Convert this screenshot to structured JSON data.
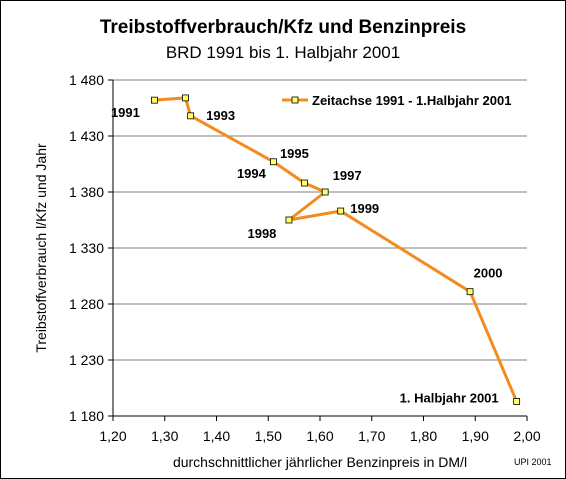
{
  "chart_data": {
    "type": "line",
    "title": "Treibstoffverbrauch/Kfz und Benzinpreis",
    "subtitle": "BRD 1991 bis 1. Halbjahr 2001",
    "xlabel": "durchschnittlicher jährlicher Benzinpreis in DM/l",
    "ylabel": "Treibstoffverbrauch  l/Kfz und Jahr",
    "xlim": [
      1.2,
      2.0
    ],
    "ylim": [
      1180,
      1480
    ],
    "x_ticks": [
      1.2,
      1.3,
      1.4,
      1.5,
      1.6,
      1.7,
      1.8,
      1.9,
      2.0
    ],
    "x_tick_labels": [
      "1,20",
      "1,30",
      "1,40",
      "1,50",
      "1,60",
      "1,70",
      "1,80",
      "1,90",
      "2,00"
    ],
    "y_ticks": [
      1180,
      1230,
      1280,
      1330,
      1380,
      1430,
      1480
    ],
    "y_tick_labels": [
      "1 180",
      "1 230",
      "1 280",
      "1 330",
      "1 380",
      "1 430",
      "1 480"
    ],
    "grid": "horizontal",
    "legend_position": "top-right",
    "series": [
      {
        "name": "Zeitachse 1991 - 1.Halbjahr 2001",
        "color": "#F28C1E",
        "marker_color": "#FFFF66",
        "points": [
          {
            "x": 1.28,
            "y": 1462
          },
          {
            "x": 1.34,
            "y": 1464
          },
          {
            "x": 1.35,
            "y": 1448
          },
          {
            "x": 1.51,
            "y": 1407
          },
          {
            "x": 1.57,
            "y": 1388
          },
          {
            "x": 1.61,
            "y": 1380
          },
          {
            "x": 1.54,
            "y": 1355
          },
          {
            "x": 1.64,
            "y": 1363
          },
          {
            "x": 1.89,
            "y": 1291
          },
          {
            "x": 1.98,
            "y": 1193
          }
        ]
      }
    ],
    "point_labels": [
      {
        "text": "1991",
        "index": 0
      },
      {
        "text": "1993",
        "index": 2
      },
      {
        "text": "1994",
        "index": 3
      },
      {
        "text": "1995",
        "index": 3
      },
      {
        "text": "1997",
        "index": 5
      },
      {
        "text": "1998",
        "index": 6
      },
      {
        "text": "1999",
        "index": 7
      },
      {
        "text": "2000",
        "index": 8
      },
      {
        "text": "1. Halbjahr 2001",
        "index": 9
      }
    ],
    "credit": "UPI 2001"
  }
}
